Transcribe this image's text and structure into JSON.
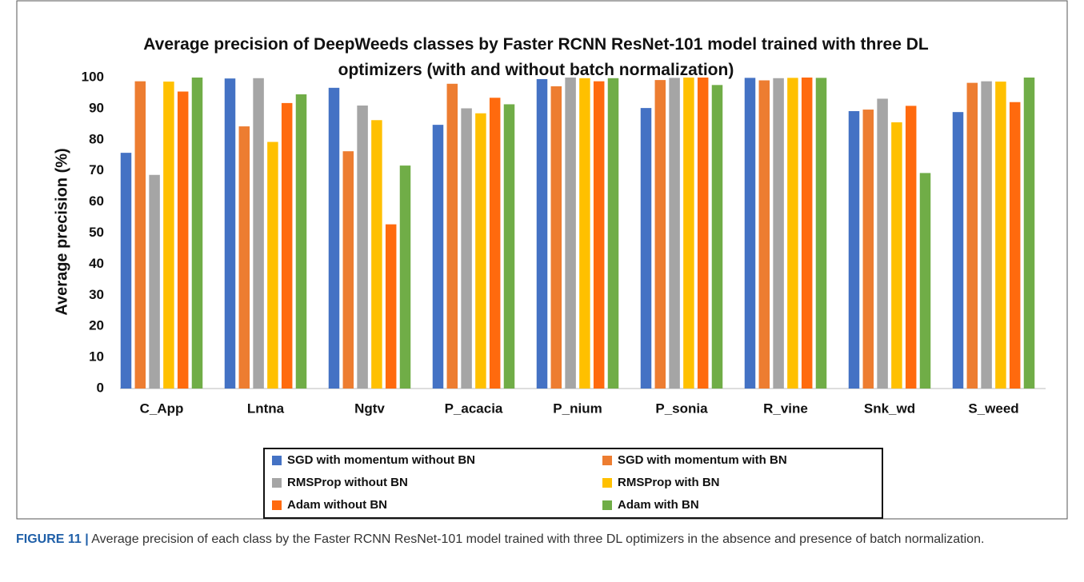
{
  "chart_data": {
    "type": "bar",
    "title": "Average precision of DeepWeeds classes by Faster RCNN ResNet-101 model trained with three DL optimizers (with and without batch normalization)",
    "ylabel": "Average precision (%)",
    "categories": [
      "C_App",
      "Lntna",
      "Ngtv",
      "P_acacia",
      "P_nium",
      "P_sonia",
      "R_vine",
      "Snk_wd",
      "S_weed"
    ],
    "series": [
      {
        "name": "SGD with momentum without BN",
        "color": "#4472c4",
        "values": [
          75.8,
          99.7,
          96.7,
          84.8,
          99.5,
          90.2,
          99.9,
          89.2,
          88.9
        ]
      },
      {
        "name": "SGD with momentum with BN",
        "color": "#ed7d31",
        "values": [
          98.8,
          84.3,
          76.3,
          98.0,
          97.2,
          99.2,
          99.1,
          89.7,
          98.3
        ]
      },
      {
        "name": "RMSProp without BN",
        "color": "#a5a5a5",
        "values": [
          68.7,
          99.8,
          91.0,
          90.1,
          100,
          99.9,
          99.8,
          93.2,
          98.8
        ]
      },
      {
        "name": "RMSProp with BN",
        "color": "#ffc000",
        "values": [
          98.7,
          79.3,
          86.3,
          88.5,
          99.8,
          100,
          99.9,
          85.6,
          98.7
        ]
      },
      {
        "name": "Adam without BN",
        "color": "#ff6a0e",
        "values": [
          95.5,
          91.8,
          52.8,
          93.5,
          98.8,
          100,
          100,
          90.9,
          92.1
        ]
      },
      {
        "name": "Adam with BN",
        "color": "#70ad47",
        "values": [
          100,
          94.6,
          71.7,
          91.4,
          99.8,
          97.6,
          99.9,
          69.3,
          100
        ]
      }
    ],
    "ylim": [
      0,
      104
    ],
    "yticks": [
      0,
      10,
      20,
      30,
      40,
      50,
      60,
      70,
      80,
      90,
      100
    ],
    "grid": false
  },
  "caption": {
    "label": "FIGURE 11 |",
    "text": "Average precision of each class by the Faster RCNN ResNet-101 model trained with three DL optimizers in the absence and presence of batch normalization."
  }
}
